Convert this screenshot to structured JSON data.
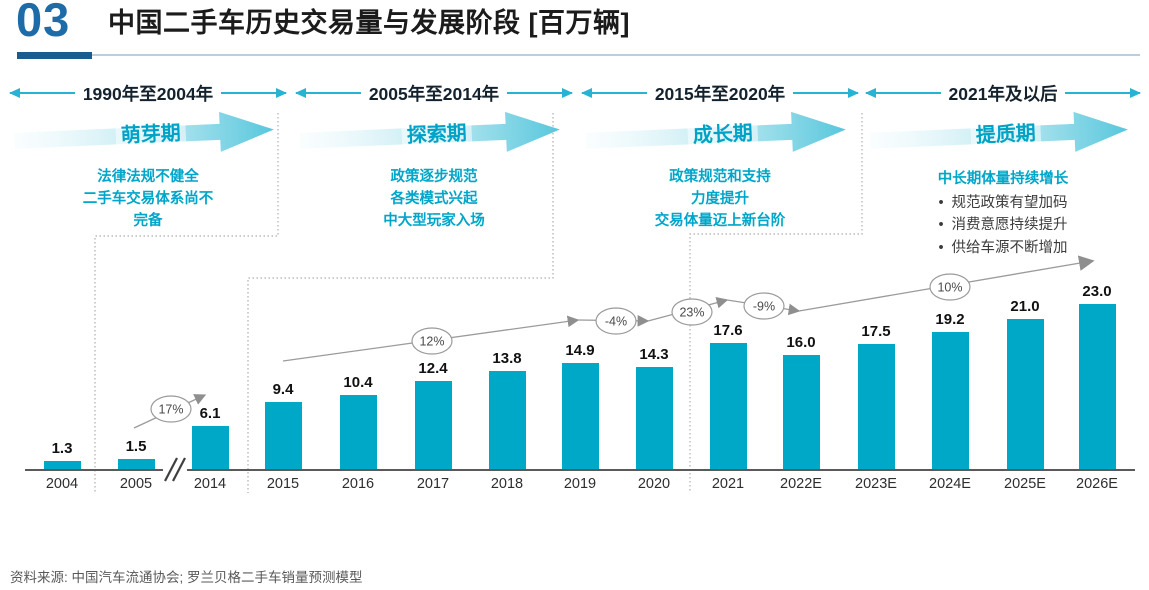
{
  "header": {
    "section_number": "03",
    "title": "中国二手车历史交易量与发展阶段 [百万辆]"
  },
  "stages": [
    {
      "period": "1990年至2004年",
      "name": "萌芽期",
      "description_lines": [
        "法律法规不健全",
        "二手车交易体系尚不",
        "完备"
      ]
    },
    {
      "period": "2005年至2014年",
      "name": "探索期",
      "description_lines": [
        "政策逐步规范",
        "各类模式兴起",
        "中大型玩家入场"
      ]
    },
    {
      "period": "2015年至2020年",
      "name": "成长期",
      "description_lines": [
        "政策规范和支持",
        "力度提升",
        "交易体量迈上新台阶"
      ]
    },
    {
      "period": "2021年及以后",
      "name": "提质期",
      "description_heading": "中长期体量持续增长",
      "bullets": [
        "规范政策有望加码",
        "消费意愿持续提升",
        "供给车源不断增加"
      ]
    }
  ],
  "chart_data": {
    "type": "bar",
    "title": "中国二手车历史交易量与发展阶段",
    "unit": "百万辆",
    "categories": [
      "2004",
      "2005",
      "2014",
      "2015",
      "2016",
      "2017",
      "2018",
      "2019",
      "2020",
      "2021",
      "2022E",
      "2023E",
      "2024E",
      "2025E",
      "2026E"
    ],
    "values": [
      1.3,
      1.5,
      6.1,
      9.4,
      10.4,
      12.4,
      13.8,
      14.9,
      14.3,
      17.6,
      16.0,
      17.5,
      19.2,
      21.0,
      23.0
    ],
    "growth_annotations": [
      "17%",
      "12%",
      "-4%",
      "23%",
      "-9%",
      "10%"
    ],
    "axis_break_between": [
      "2005",
      "2014"
    ],
    "ylim": [
      0,
      25
    ],
    "grid": false,
    "legend": "none",
    "bar_color": "#00a8c8"
  },
  "colors": {
    "accent_cyan": "#00a8c8",
    "stage_text_teal": "#00a6c9",
    "header_blue": "#1d6ca8",
    "header_bar_blue": "#1a5b90",
    "trend_gray": "#9b9b9b"
  },
  "footer": {
    "source": "资料来源: 中国汽车流通协会; 罗兰贝格二手车销量预测模型"
  }
}
